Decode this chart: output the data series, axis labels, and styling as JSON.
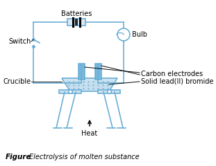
{
  "bg_color": "#ffffff",
  "line_color": "#6aaed6",
  "text_color": "#000000",
  "label_color": "#333333",
  "title": "Figure",
  "subtitle": "Electrolysis of molten substance",
  "labels": {
    "batteries": "Batteries",
    "switch": "Switch",
    "bulb": "Bulb",
    "carbon": "Carbon electrodes",
    "crucible": "Crucible",
    "solid_lead": "Solid lead(II) bromide",
    "heat": "Heat"
  },
  "figsize": [
    3.11,
    2.4
  ],
  "dpi": 100
}
